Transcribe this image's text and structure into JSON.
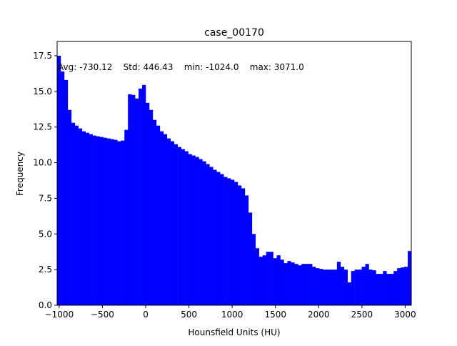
{
  "chart_data": {
    "type": "bar",
    "title": "case_00170",
    "xlabel": "Hounsfield Units (HU)",
    "ylabel": "Frequency",
    "xlim": [
      -1024,
      3071
    ],
    "ylim": [
      0,
      18.5
    ],
    "x_ticks": [
      -1000,
      -500,
      0,
      500,
      1000,
      1500,
      2000,
      2500,
      3000
    ],
    "x_tick_labels": [
      "−1000",
      "−500",
      "0",
      "500",
      "1000",
      "1500",
      "2000",
      "2500",
      "3000"
    ],
    "y_ticks": [
      0,
      2.5,
      5,
      7.5,
      10,
      12.5,
      15,
      17.5
    ],
    "y_tick_labels": [
      "0.0",
      "2.5",
      "5.0",
      "7.5",
      "10.0",
      "12.5",
      "15.0",
      "17.5"
    ],
    "bar_color": "#0000ff",
    "bins": 100,
    "values": [
      17.5,
      16.4,
      15.8,
      13.7,
      12.8,
      12.6,
      12.4,
      12.2,
      12.1,
      12.0,
      11.9,
      11.85,
      11.8,
      11.75,
      11.7,
      11.65,
      11.6,
      11.5,
      11.55,
      12.3,
      14.8,
      14.75,
      14.5,
      15.2,
      15.45,
      14.2,
      13.7,
      13.0,
      12.6,
      12.2,
      12.0,
      11.7,
      11.5,
      11.3,
      11.1,
      10.95,
      10.8,
      10.6,
      10.5,
      10.4,
      10.25,
      10.1,
      9.9,
      9.7,
      9.5,
      9.35,
      9.2,
      9.0,
      8.9,
      8.8,
      8.65,
      8.4,
      8.2,
      7.7,
      6.5,
      5.0,
      4.0,
      3.4,
      3.5,
      3.75,
      3.75,
      3.3,
      3.5,
      3.2,
      2.95,
      3.1,
      3.0,
      2.9,
      2.8,
      2.9,
      2.9,
      2.9,
      2.7,
      2.6,
      2.55,
      2.5,
      2.5,
      2.5,
      2.5,
      3.05,
      2.7,
      2.5,
      1.6,
      2.4,
      2.5,
      2.5,
      2.7,
      2.9,
      2.5,
      2.45,
      2.2,
      2.2,
      2.4,
      2.2,
      2.2,
      2.4,
      2.6,
      2.65,
      2.7,
      3.8
    ],
    "annotation": "Avg: -730.12    Std: 446.43    min: -1024.0    max: 3071.0"
  }
}
